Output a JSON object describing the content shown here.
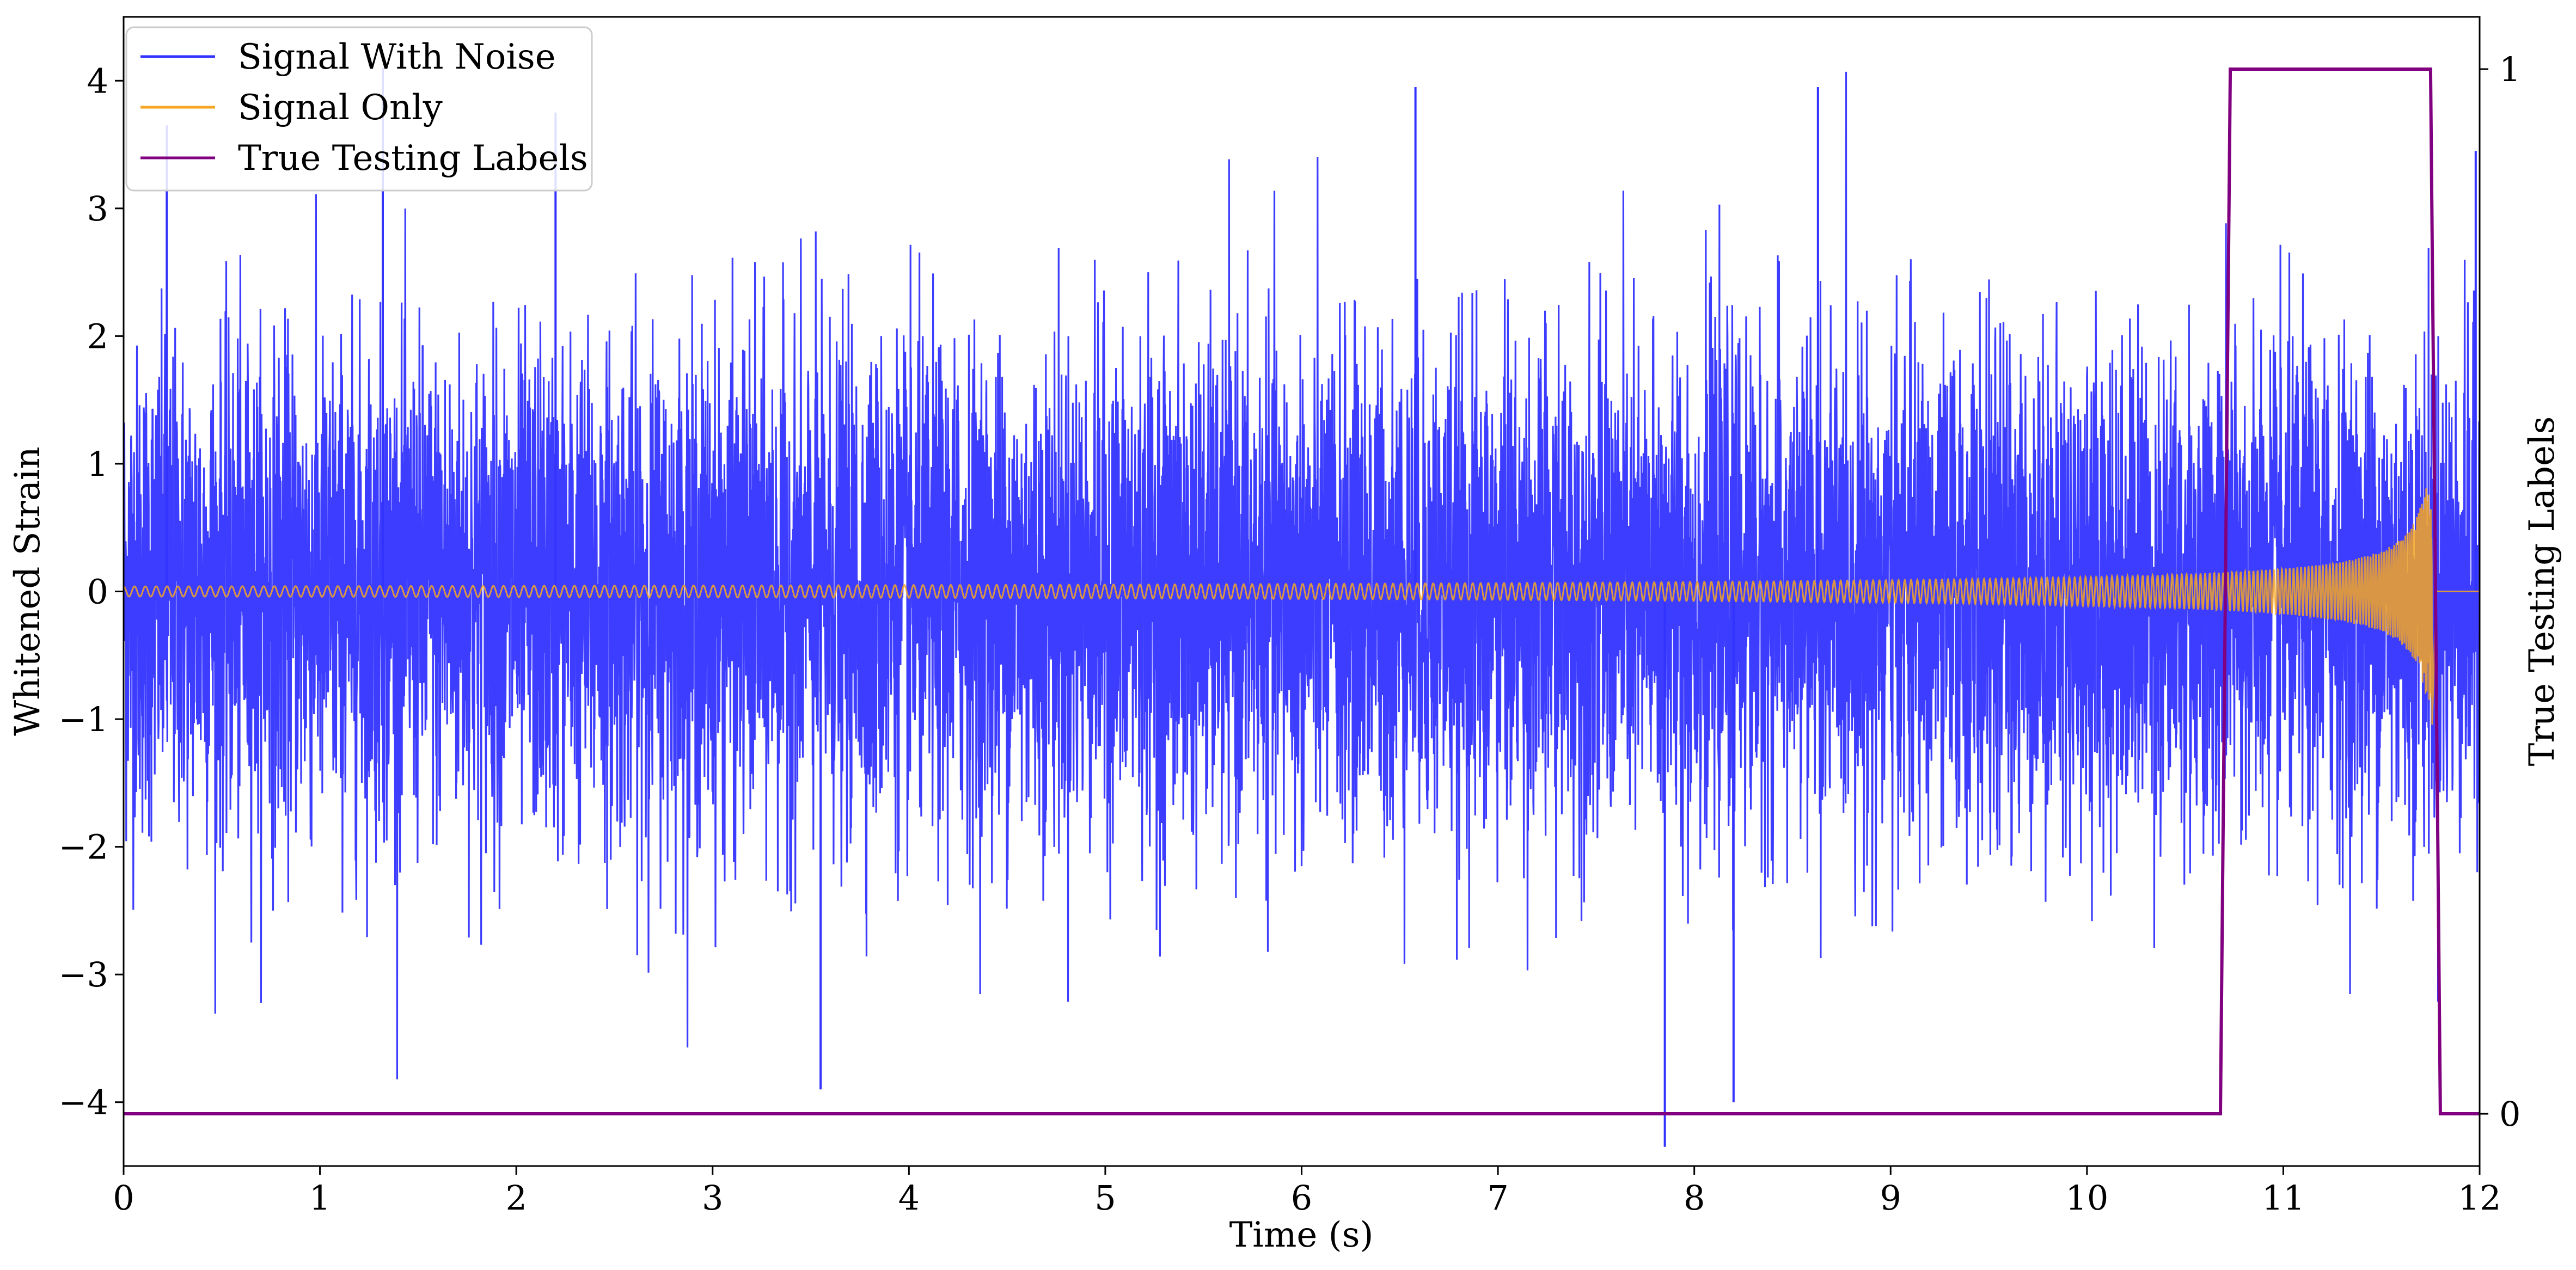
{
  "chart_data": {
    "type": "line",
    "title": "",
    "xlabel": "Time (s)",
    "ylabel": "Whitened Strain",
    "y2label": "True Testing Labels",
    "xlim": [
      0,
      12
    ],
    "ylim": [
      -4.5,
      4.5
    ],
    "y2lim": [
      -0.05,
      1.05
    ],
    "xticks": [
      0,
      1,
      2,
      3,
      4,
      5,
      6,
      7,
      8,
      9,
      10,
      11,
      12
    ],
    "xtick_labels": [
      "0",
      "1",
      "2",
      "3",
      "4",
      "5",
      "6",
      "7",
      "8",
      "9",
      "10",
      "11",
      "12"
    ],
    "yticks": [
      4,
      3,
      2,
      1,
      0,
      -1,
      -2,
      -3,
      -4
    ],
    "ytick_labels": [
      "4",
      "3",
      "2",
      "1",
      "0",
      "−1",
      "−2",
      "−3",
      "−4"
    ],
    "y2ticks": [
      1,
      0
    ],
    "y2tick_labels": [
      "1",
      "0"
    ],
    "grid": false,
    "legend_position": "top-left",
    "legend": [
      {
        "label": "Signal With Noise",
        "color": "#3333ff"
      },
      {
        "label": "Signal Only",
        "color": "#f5a623"
      },
      {
        "label": "True Testing Labels",
        "color": "#800080"
      }
    ],
    "series": [
      {
        "name": "Signal With Noise",
        "axis": "left",
        "color": "#3333ff",
        "description_kind": "noise",
        "approx_std": 1.0,
        "notable_points": [
          {
            "x": 0.22,
            "y": 3.65
          },
          {
            "x": 1.32,
            "y": 4.1
          },
          {
            "x": 2.2,
            "y": 3.75
          },
          {
            "x": 3.55,
            "y": -3.9
          },
          {
            "x": 6.58,
            "y": 3.95
          },
          {
            "x": 7.85,
            "y": -4.35
          },
          {
            "x": 8.2,
            "y": -4.0
          },
          {
            "x": 8.63,
            "y": 3.95
          },
          {
            "x": 11.98,
            "y": 3.45
          }
        ]
      },
      {
        "name": "Signal Only",
        "axis": "left",
        "color": "#f5a623",
        "description_kind": "chirp",
        "amplitude_start": 0.04,
        "amplitude_peak": 0.85,
        "amplitude_min_at_merger": -1.05,
        "merger_time": 11.77,
        "end_time": 11.78
      },
      {
        "name": "True Testing Labels",
        "axis": "right",
        "color": "#800080",
        "x": [
          0,
          10.68,
          10.73,
          11.75,
          11.8,
          12
        ],
        "y": [
          0,
          0,
          1,
          1,
          0,
          0
        ]
      }
    ]
  }
}
